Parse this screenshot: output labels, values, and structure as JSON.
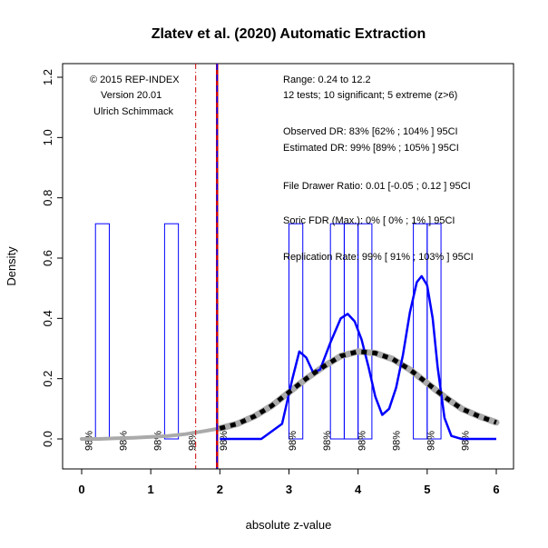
{
  "chart_data": {
    "type": "histogram-density",
    "title": "Zlatev et al. (2020) Automatic Extraction",
    "xlabel": "absolute z-value",
    "ylabel": "Density",
    "xlim": [
      0,
      6
    ],
    "ylim": [
      -0.1,
      1.25
    ],
    "xticks": [
      0,
      1,
      2,
      3,
      4,
      5,
      6
    ],
    "x_tick_labels": [
      "0",
      "1",
      "2",
      "3",
      "4",
      "5",
      "6"
    ],
    "yticks": [
      0.0,
      0.2,
      0.4,
      0.6,
      0.8,
      1.0,
      1.2
    ],
    "y_tick_labels": [
      "0.0",
      "0.2",
      "0.4",
      "0.6",
      "0.8",
      "1.0",
      "1.2"
    ],
    "histogram_bars": [
      {
        "x0": 0.2,
        "x1": 0.4,
        "density": 0.714
      },
      {
        "x0": 1.2,
        "x1": 1.4,
        "density": 0.714
      },
      {
        "x0": 3.0,
        "x1": 3.2,
        "density": 0.714
      },
      {
        "x0": 3.6,
        "x1": 3.8,
        "density": 0.714
      },
      {
        "x0": 3.8,
        "x1": 4.0,
        "density": 0.714
      },
      {
        "x0": 4.0,
        "x1": 4.2,
        "density": 0.714
      },
      {
        "x0": 4.8,
        "x1": 5.0,
        "density": 0.714
      },
      {
        "x0": 5.0,
        "x1": 5.2,
        "density": 0.714
      }
    ],
    "observed_density": {
      "x": [
        2.0,
        2.6,
        2.9,
        3.05,
        3.15,
        3.25,
        3.35,
        3.45,
        3.6,
        3.75,
        3.85,
        3.95,
        4.05,
        4.15,
        4.25,
        4.35,
        4.45,
        4.55,
        4.65,
        4.75,
        4.85,
        4.92,
        5.0,
        5.08,
        5.15,
        5.25,
        5.35,
        5.5,
        5.7,
        6.0
      ],
      "y": [
        0.0,
        0.0,
        0.05,
        0.2,
        0.29,
        0.27,
        0.22,
        0.23,
        0.32,
        0.4,
        0.415,
        0.39,
        0.33,
        0.24,
        0.14,
        0.08,
        0.1,
        0.17,
        0.28,
        0.42,
        0.52,
        0.54,
        0.51,
        0.4,
        0.24,
        0.07,
        0.01,
        0.0,
        0.0,
        0.0
      ]
    },
    "fitted_density": {
      "x": [
        2.0,
        2.25,
        2.5,
        2.75,
        3.0,
        3.25,
        3.5,
        3.75,
        4.0,
        4.25,
        4.5,
        4.75,
        5.0,
        5.25,
        5.5,
        5.75,
        6.0
      ],
      "y": [
        0.035,
        0.05,
        0.075,
        0.11,
        0.155,
        0.2,
        0.24,
        0.275,
        0.29,
        0.285,
        0.265,
        0.23,
        0.185,
        0.14,
        0.1,
        0.075,
        0.055
      ]
    },
    "low_tail_density": {
      "x": [
        0.0,
        0.25,
        0.5,
        0.75,
        1.0,
        1.25,
        1.5,
        1.75,
        2.0
      ],
      "y": [
        0.0,
        0.0,
        0.002,
        0.004,
        0.007,
        0.01,
        0.016,
        0.025,
        0.035
      ]
    },
    "vertical_lines": [
      {
        "x": 1.65,
        "style": "dash-dot",
        "color": "#cc0000"
      },
      {
        "x": 1.96,
        "style": "solid",
        "color": "#cc0000"
      },
      {
        "x": 1.96,
        "style": "dashed",
        "color": "#0000ff"
      }
    ],
    "percent_labels": {
      "text": "98%",
      "x": [
        0.15,
        0.65,
        1.15,
        1.65,
        2.1,
        3.1,
        3.6,
        4.1,
        4.6,
        5.1,
        5.6
      ]
    },
    "copyright": [
      "© 2015 REP-INDEX",
      "Version 20.01",
      "Ulrich Schimmack"
    ],
    "stats": [
      "Range: 0.24 to 12.2",
      "12 tests; 10 significant; 5 extreme (z>6)",
      "Observed DR: 83% [62% ; 104% ] 95CI",
      "Estimated DR: 99% [89% ; 105% ] 95CI",
      "File Drawer Ratio: 0.01 [-0.05 ; 0.12 ] 95CI",
      "Soric FDR (Max.): 0% [ 0% ; 1% ] 95CI",
      "Replication Rate: 99% [ 91% ; 103% ] 95CI"
    ],
    "colors": {
      "histogram": "#0000ff",
      "observed": "#0000ff",
      "fitted": "#000000",
      "fitted_halo": "#aaaaaa",
      "low_tail": "#aaaaaa",
      "criterion": "#cc0000"
    },
    "grid": false,
    "legend": "none"
  }
}
